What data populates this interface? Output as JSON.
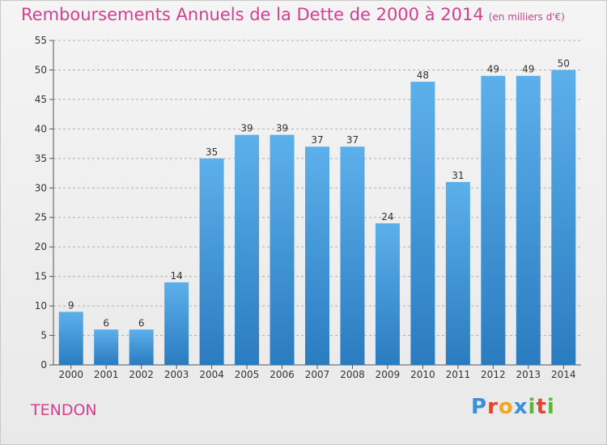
{
  "title": "Remboursements Annuels de la Dette de 2000 à 2014",
  "subtitle": "(en milliers d'€)",
  "commune": "TENDON",
  "logo": {
    "text": "Proxiti",
    "letters": [
      "P",
      "r",
      "o",
      "x",
      "i",
      "t",
      "i"
    ]
  },
  "colors": {
    "accent": "#d43f8f",
    "bar_top": "#5cb0ea",
    "bar_bottom": "#2a7cc0"
  },
  "chart_data": {
    "type": "bar",
    "title": "Remboursements Annuels de la Dette de 2000 à 2014",
    "xlabel": "",
    "ylabel": "",
    "categories": [
      "2000",
      "2001",
      "2002",
      "2003",
      "2004",
      "2005",
      "2006",
      "2007",
      "2008",
      "2009",
      "2010",
      "2011",
      "2012",
      "2013",
      "2014"
    ],
    "values": [
      9,
      6,
      6,
      14,
      35,
      39,
      39,
      37,
      37,
      24,
      48,
      31,
      49,
      49,
      50
    ],
    "ylim": [
      0,
      55
    ],
    "yticks": [
      0,
      5,
      10,
      15,
      20,
      25,
      30,
      35,
      40,
      45,
      50,
      55
    ],
    "grid": true
  }
}
